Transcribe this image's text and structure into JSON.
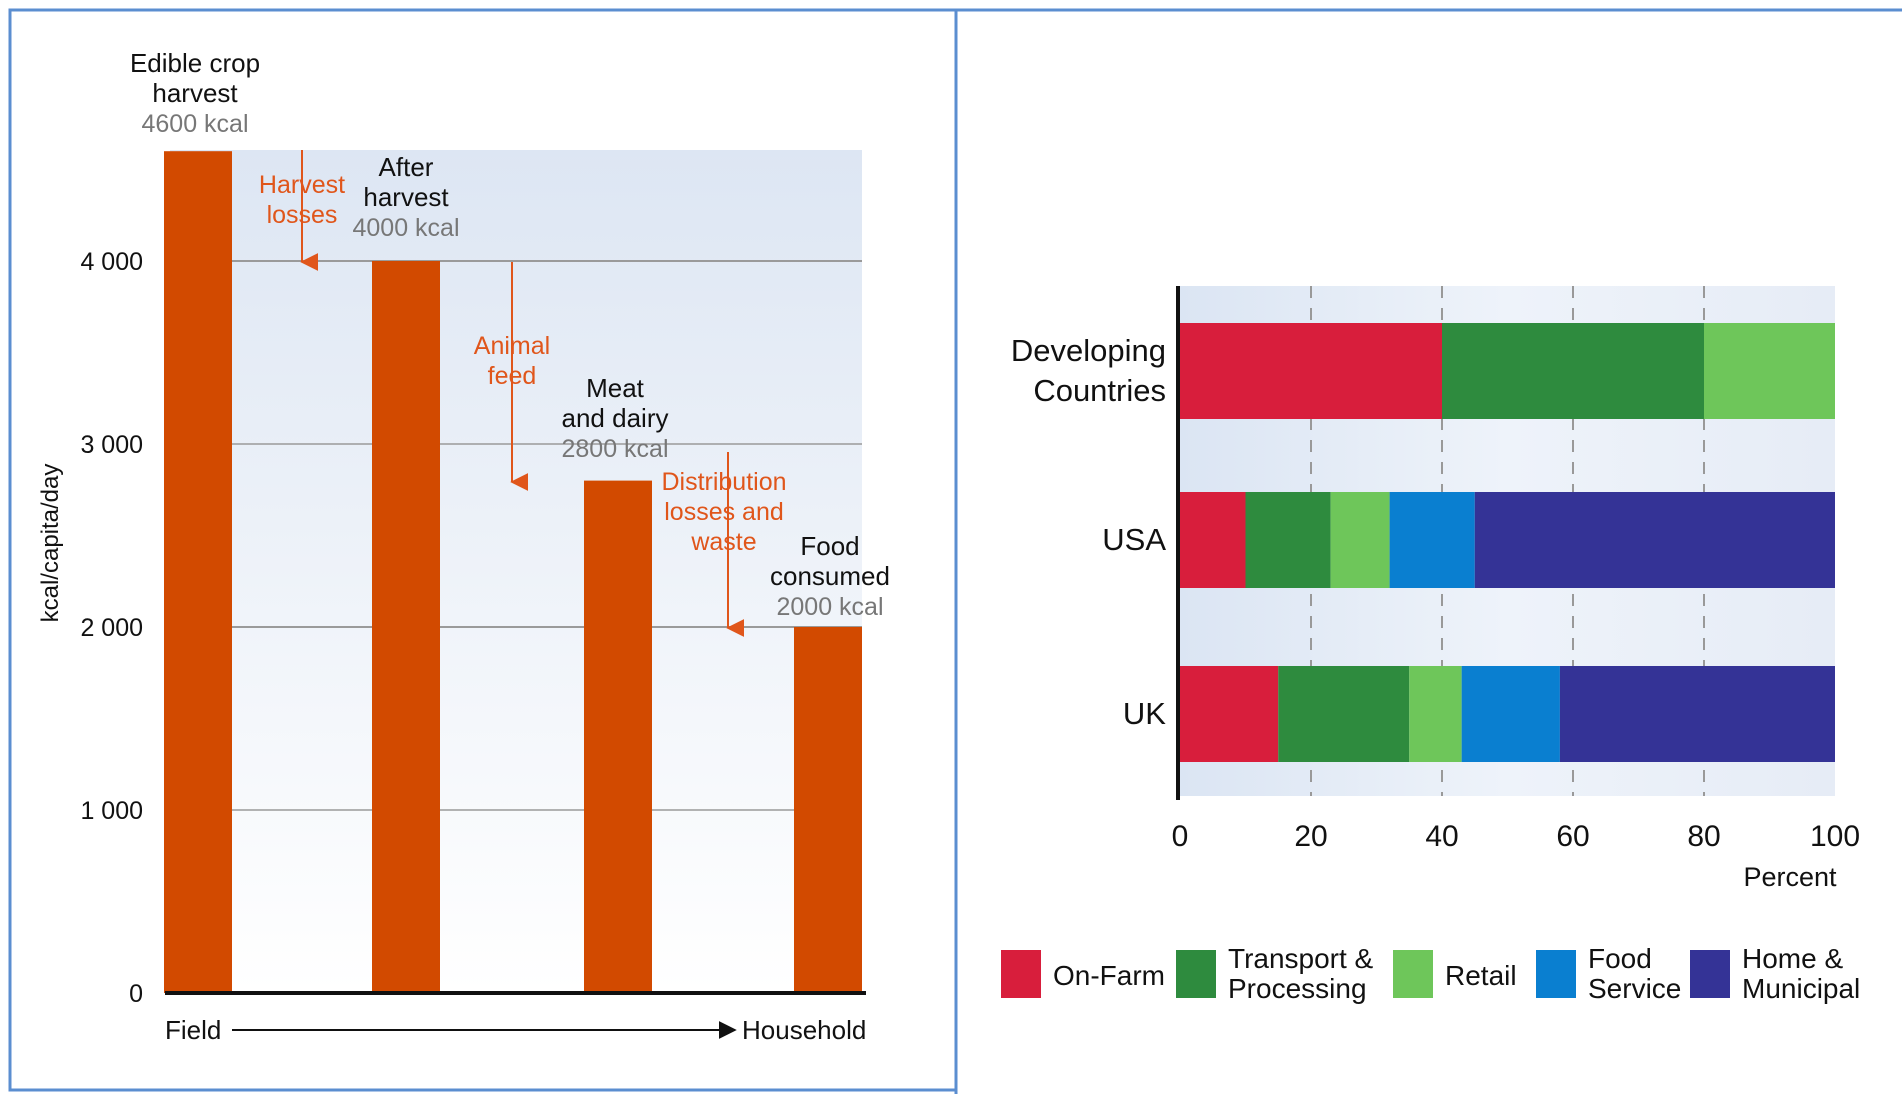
{
  "chart_data": [
    {
      "type": "bar",
      "ylabel": "kcal/capita/day",
      "ylim": [
        0,
        4600
      ],
      "yticks": [
        0,
        1000,
        2000,
        3000,
        4000
      ],
      "ytick_labels": [
        "0",
        "1 000",
        "2 000",
        "3 000",
        "4 000"
      ],
      "grid": true,
      "x_axis": {
        "start_label": "Field",
        "end_label": "Household"
      },
      "bars": [
        {
          "value": 4600,
          "label_lines": [
            "Edible crop",
            "harvest"
          ],
          "value_label": "4600 kcal"
        },
        {
          "value": 4000,
          "label_lines": [
            "After",
            "harvest"
          ],
          "value_label": "4000 kcal"
        },
        {
          "value": 2800,
          "label_lines": [
            "Meat",
            "and dairy"
          ],
          "value_label": "2800 kcal"
        },
        {
          "value": 2000,
          "label_lines": [
            "Food",
            "consumed"
          ],
          "value_label": "2000 kcal"
        }
      ],
      "losses": [
        {
          "lines": [
            "Harvest",
            "losses"
          ]
        },
        {
          "lines": [
            "Animal",
            "feed"
          ]
        },
        {
          "lines": [
            "Distribution",
            "losses and",
            "waste"
          ]
        }
      ],
      "colors": {
        "bar": "#d24a00",
        "loss": "#e0561b",
        "value_label": "#777777",
        "grid": "#9a9a9a"
      }
    },
    {
      "type": "bar",
      "orientation": "horizontal",
      "stacked": true,
      "xlabel": "Percent",
      "xlim": [
        0,
        100
      ],
      "xticks": [
        0,
        20,
        40,
        60,
        80,
        100
      ],
      "grid": true,
      "legend_position": "bottom",
      "categories": [
        [
          "Developing",
          "Countries"
        ],
        [
          "USA"
        ],
        [
          "UK"
        ]
      ],
      "series": [
        {
          "name": [
            "On-Farm"
          ],
          "color": "#d81e3c",
          "values": [
            40,
            10,
            15
          ]
        },
        {
          "name": [
            "Transport &",
            "Processing"
          ],
          "color": "#2e8b3e",
          "values": [
            40,
            13,
            20
          ]
        },
        {
          "name": [
            "Retail"
          ],
          "color": "#6ec65a",
          "values": [
            20,
            9,
            8
          ]
        },
        {
          "name": [
            "Food",
            "Service"
          ],
          "color": "#0a7fd0",
          "values": [
            0,
            13,
            15
          ]
        },
        {
          "name": [
            "Home &",
            "Municipal"
          ],
          "color": "#343396",
          "values": [
            0,
            55,
            42
          ]
        }
      ]
    }
  ]
}
